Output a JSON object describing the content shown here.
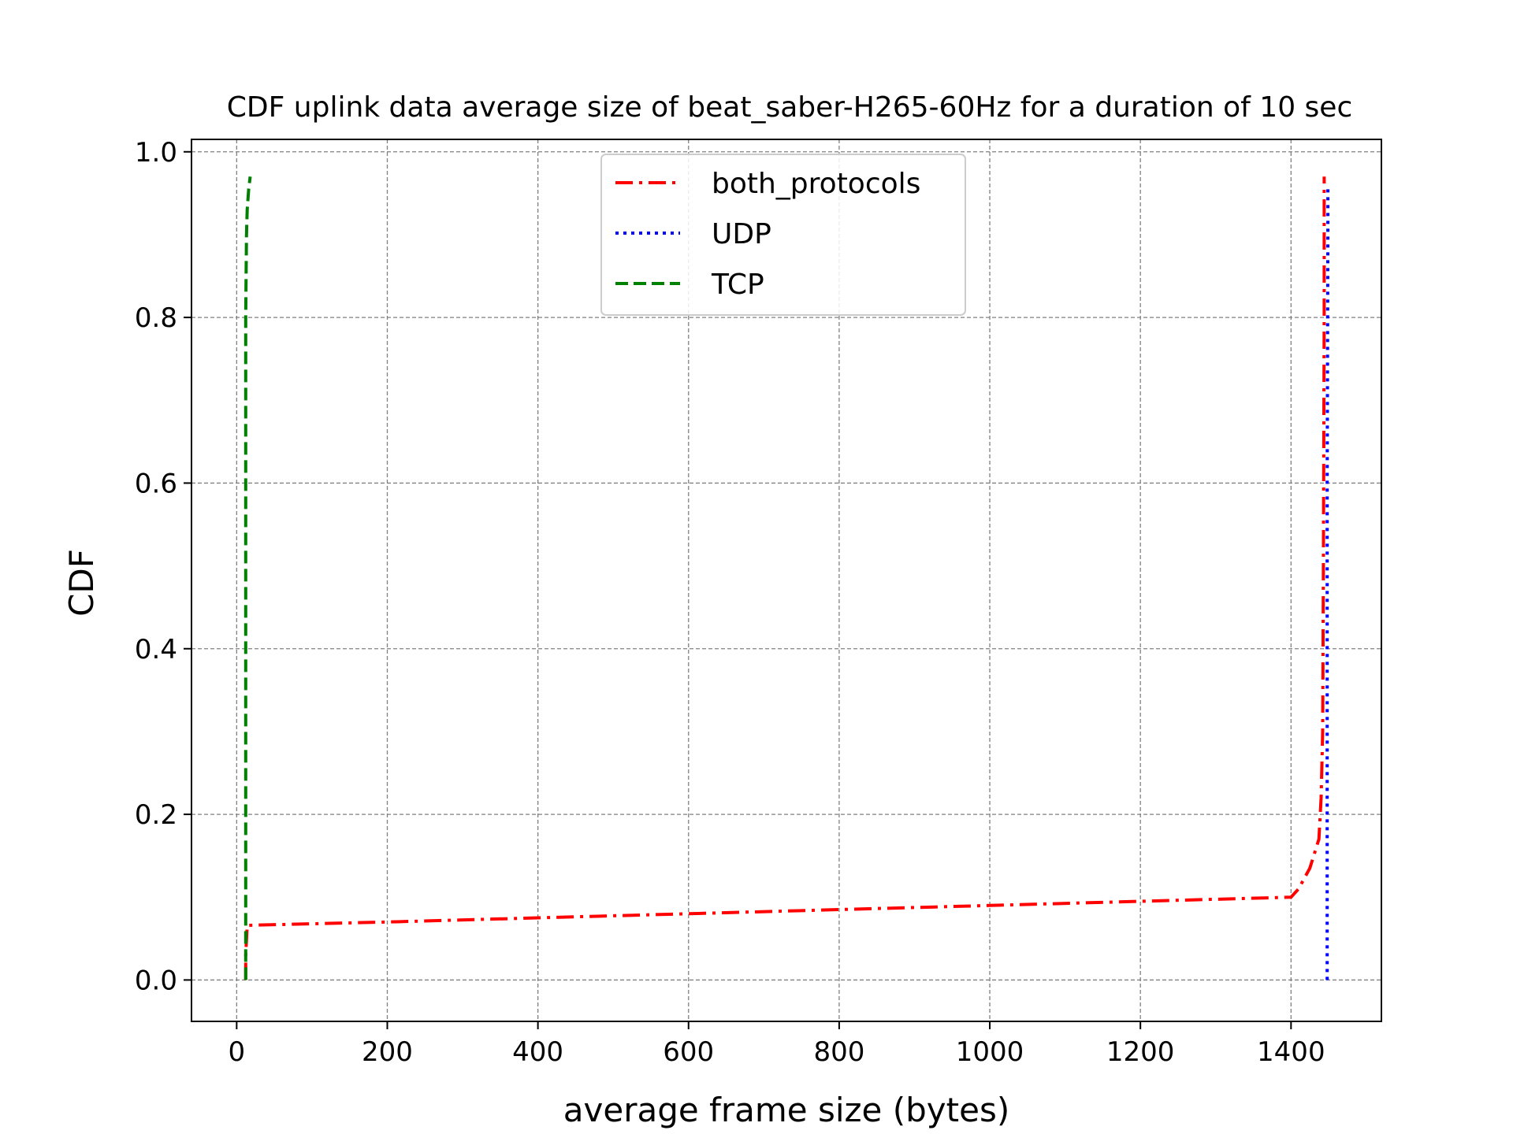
{
  "chart_data": {
    "type": "line",
    "title": "CDF uplink data average size of beat_saber-H265-60Hz for a duration of 10 sec",
    "xlabel": "average frame size (bytes)",
    "ylabel": "CDF",
    "xlim": [
      -60,
      1520
    ],
    "ylim": [
      -0.05,
      1.015
    ],
    "xticks": [
      0,
      200,
      400,
      600,
      800,
      1000,
      1200,
      1400
    ],
    "yticks": [
      0.0,
      0.2,
      0.4,
      0.6,
      0.8,
      1.0
    ],
    "xtick_labels": [
      "0",
      "200",
      "400",
      "600",
      "800",
      "1000",
      "1200",
      "1400"
    ],
    "ytick_labels": [
      "0.0",
      "0.2",
      "0.4",
      "0.6",
      "0.8",
      "1.0"
    ],
    "grid": true,
    "legend_position": "top-center",
    "series": [
      {
        "name": "both_protocols",
        "color": "#ff0000",
        "style": "dashdot",
        "x": [
          12,
          12,
          14,
          200,
          400,
          600,
          800,
          1000,
          1200,
          1400,
          1410,
          1425,
          1437,
          1440,
          1442,
          1443,
          1444,
          1444
        ],
        "y": [
          0.0,
          0.03,
          0.066,
          0.07,
          0.075,
          0.08,
          0.085,
          0.09,
          0.095,
          0.1,
          0.11,
          0.135,
          0.17,
          0.22,
          0.3,
          0.5,
          0.8,
          0.97
        ]
      },
      {
        "name": "UDP",
        "color": "#0000ff",
        "style": "dotted",
        "x": [
          1448,
          1448,
          1448,
          1448,
          1449,
          1449
        ],
        "y": [
          0.0,
          0.1,
          0.3,
          0.6,
          0.9,
          0.96
        ]
      },
      {
        "name": "TCP",
        "color": "#008000",
        "style": "dashed",
        "x": [
          12,
          12,
          12,
          12,
          13,
          14,
          16,
          18
        ],
        "y": [
          0.0,
          0.2,
          0.5,
          0.8,
          0.9,
          0.93,
          0.955,
          0.97
        ]
      }
    ]
  }
}
